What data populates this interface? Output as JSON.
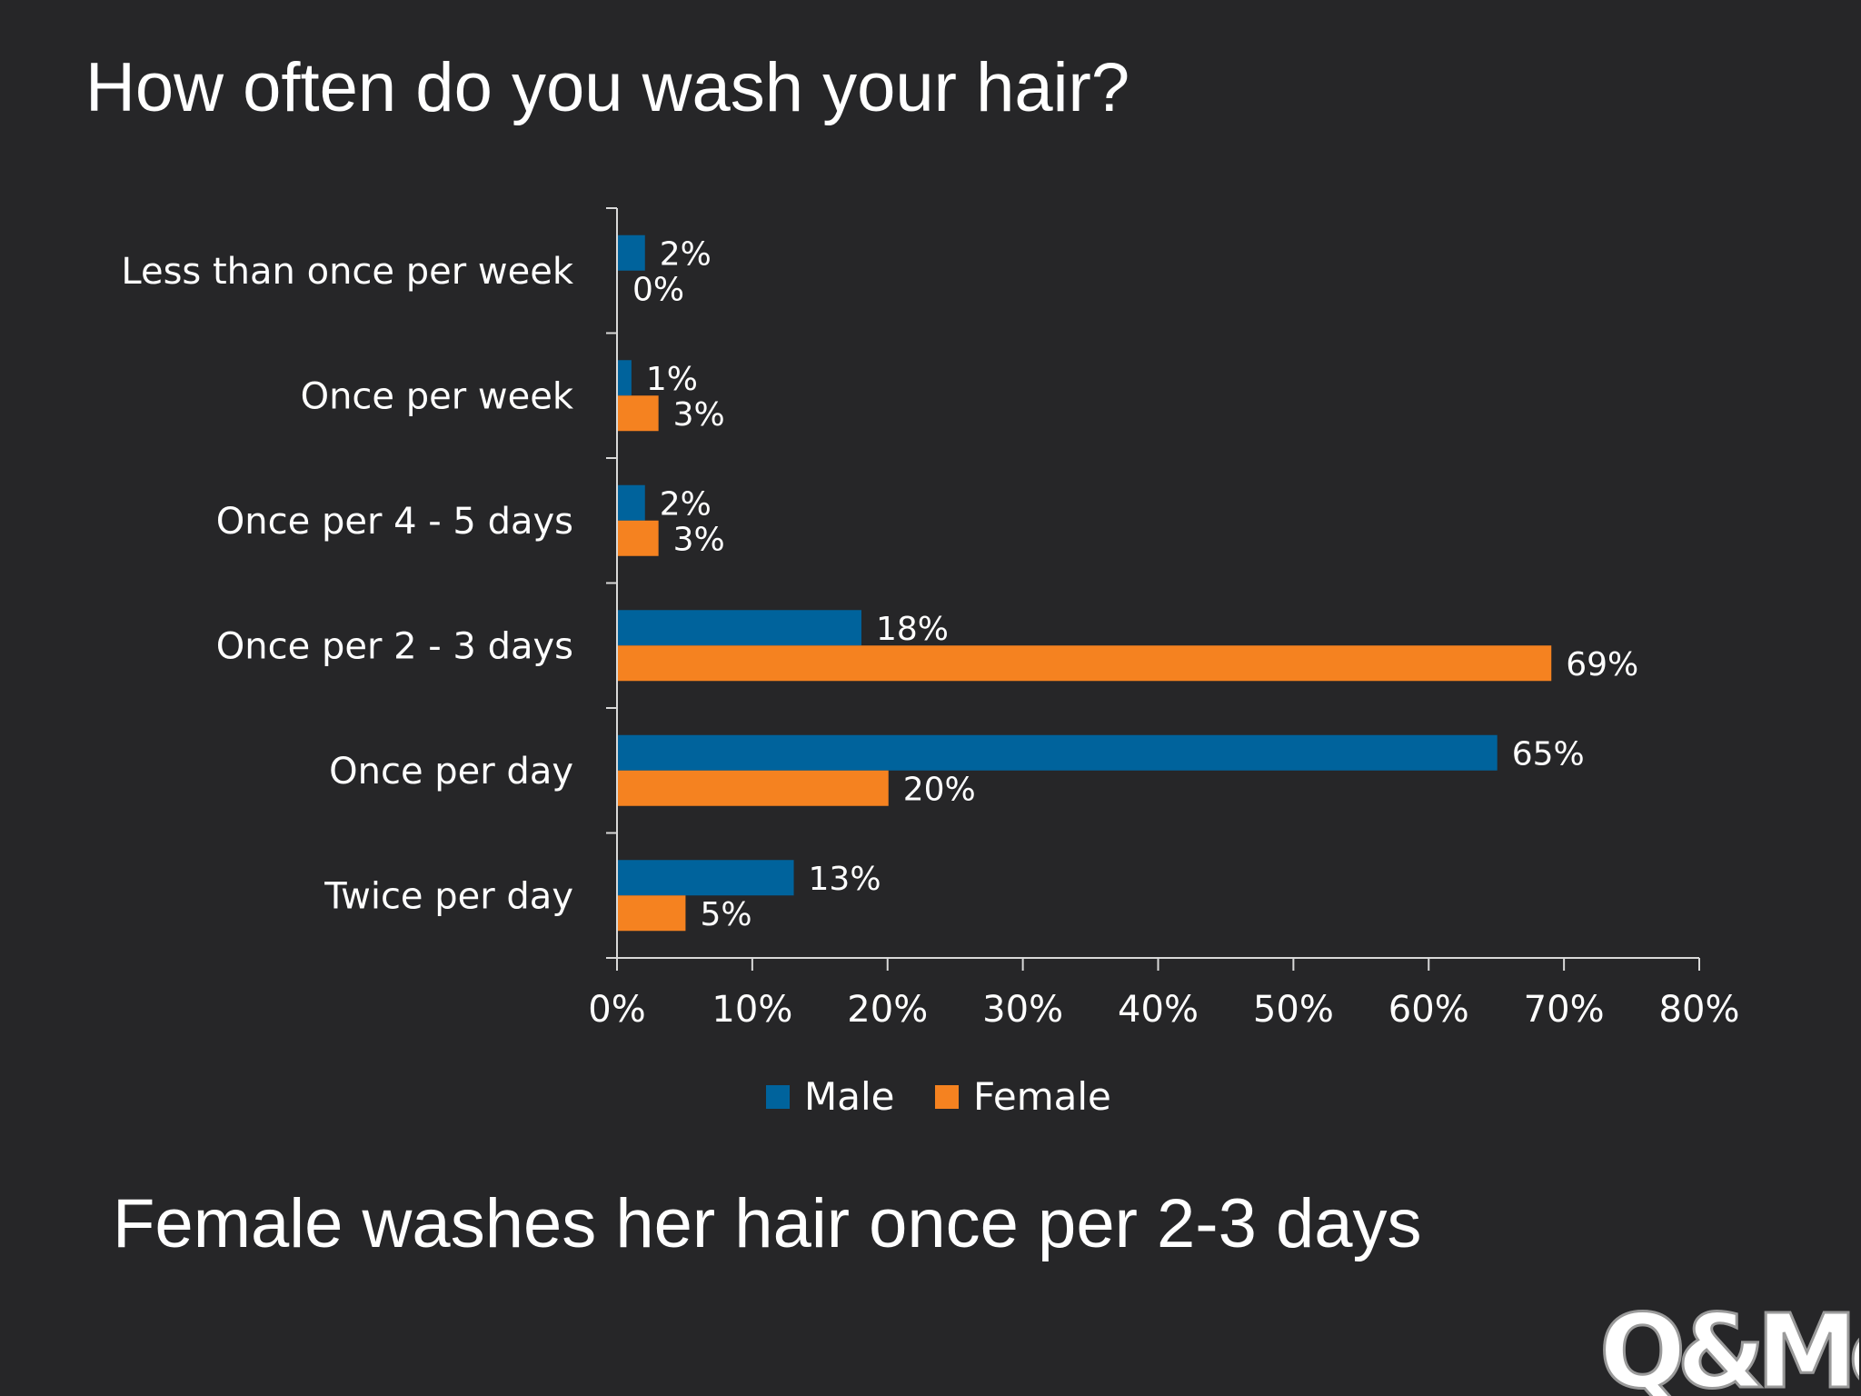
{
  "slide": {
    "title": "How often do you wash your hair?",
    "caption": "Female washes her hair once per 2-3 days",
    "logo_text": "Q&Me"
  },
  "chart_data": {
    "type": "bar",
    "orientation": "horizontal",
    "categories": [
      "Less than once per week",
      "Once per week",
      "Once per 4 - 5 days",
      "Once per 2 - 3 days",
      "Once per day",
      "Twice per day"
    ],
    "series": [
      {
        "name": "Male",
        "color": "#00639c",
        "values": [
          2,
          1,
          2,
          18,
          65,
          13
        ],
        "labels": [
          "2%",
          "1%",
          "2%",
          "18%",
          "65%",
          "13%"
        ]
      },
      {
        "name": "Female",
        "color": "#f58220",
        "values": [
          0,
          3,
          3,
          69,
          20,
          5
        ],
        "labels": [
          "0%",
          "3%",
          "3%",
          "69%",
          "20%",
          "5%"
        ]
      }
    ],
    "xlim": [
      0,
      80
    ],
    "xticks": [
      0,
      10,
      20,
      30,
      40,
      50,
      60,
      70,
      80
    ],
    "xtick_labels": [
      "0%",
      "10%",
      "20%",
      "30%",
      "40%",
      "50%",
      "60%",
      "70%",
      "80%"
    ],
    "legend_position": "bottom",
    "grid": false
  }
}
